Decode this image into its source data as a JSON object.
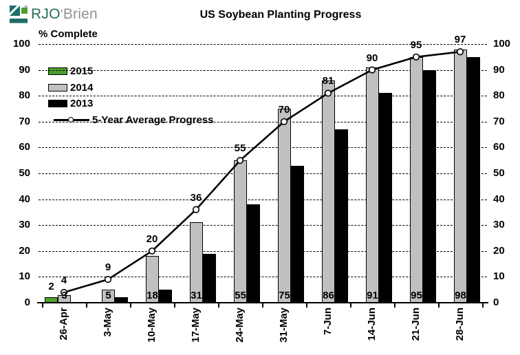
{
  "logo": {
    "primary": "RJO",
    "apostrophe": "’",
    "secondary": "Brien"
  },
  "title": "US Soybean Planting Progress",
  "y_axis": {
    "caption": "% Complete",
    "ticks": [
      0,
      10,
      20,
      30,
      40,
      50,
      60,
      70,
      80,
      90,
      100
    ]
  },
  "colors": {
    "bar_2015": "#4BA02A",
    "bar_2014": "#C0C0C0",
    "bar_2013": "#000000",
    "line_avg": "#000000",
    "logo_teal": "#1C6E69",
    "logo_green": "#4C9F2F",
    "logo_gray": "#B9BDBC"
  },
  "chart_data": {
    "type": "bar+line",
    "title": "US Soybean Planting Progress",
    "ylabel": "% Complete",
    "ylim": [
      0,
      100
    ],
    "ytick_step": 10,
    "grid": "dashed-horizontal",
    "legend_position": "top-left-inside",
    "categories": [
      "26-Apr",
      "3-May",
      "10-May",
      "17-May",
      "24-May",
      "31-May",
      "7-Jun",
      "14-Jun",
      "21-Jun",
      "28-Jun"
    ],
    "series": [
      {
        "name": "2015",
        "type": "bar",
        "color": "#4BA02A",
        "values": [
          2,
          null,
          null,
          null,
          null,
          null,
          null,
          null,
          null,
          null
        ],
        "data_labels": "above"
      },
      {
        "name": "2014",
        "type": "bar",
        "color": "#C0C0C0",
        "values": [
          3,
          5,
          18,
          31,
          55,
          75,
          86,
          91,
          95,
          98
        ],
        "data_labels": "inside-base"
      },
      {
        "name": "2013",
        "type": "bar",
        "color": "#000000",
        "values": [
          0,
          2,
          5,
          19,
          38,
          53,
          67,
          81,
          90,
          95
        ],
        "data_labels": "none"
      },
      {
        "name": "5-Year Average Progress",
        "type": "line",
        "color": "#000000",
        "marker": "open-circle",
        "values": [
          4,
          9,
          20,
          36,
          55,
          70,
          81,
          90,
          95,
          97
        ],
        "data_labels": "above"
      }
    ]
  }
}
